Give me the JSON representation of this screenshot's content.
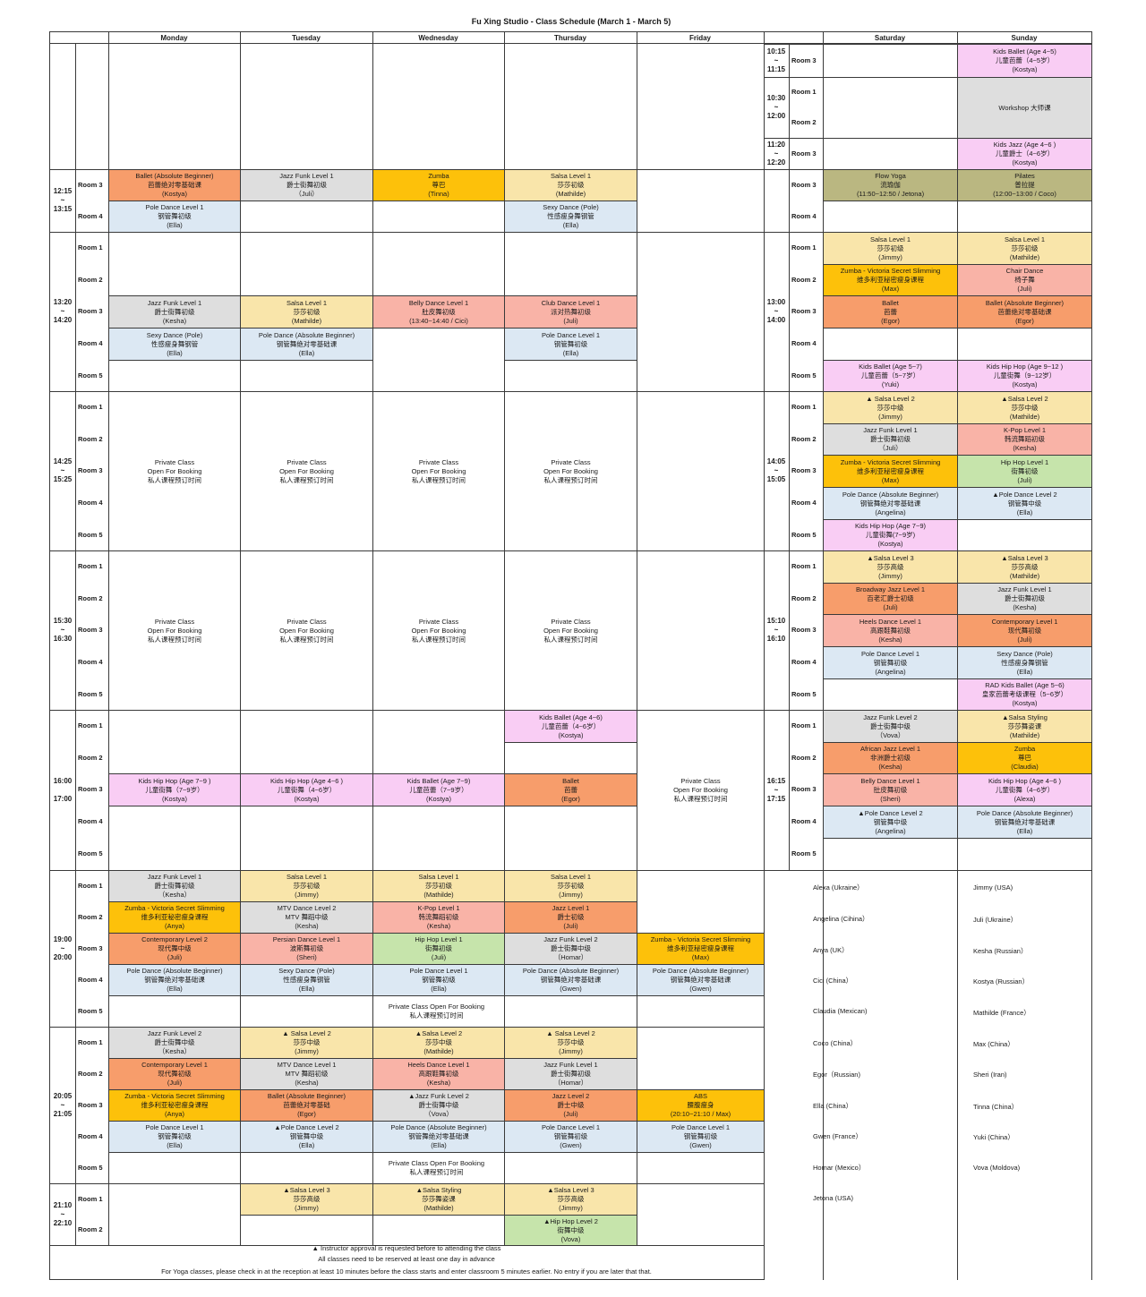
{
  "title": "Fu Xing Studio - Class Schedule (March 1 - March 5)",
  "days": [
    "Monday",
    "Tuesday",
    "Wednesday",
    "Thursday",
    "Friday",
    "Saturday",
    "Sunday"
  ],
  "colors": {
    "ballet": "#f79d6b",
    "jazz_funk": "#dedede",
    "zumba": "#fdc10a",
    "salsa": "#f9e5aa",
    "pole": "#dce8f3",
    "belly_heels_kpop": "#f9b3a7",
    "kids": "#f9cdf4",
    "hiphop": "#c6e4ab",
    "yoga": "#bab781"
  },
  "weekday_blocks": [
    {
      "time": [
        "12:15",
        "~",
        "13:15"
      ],
      "rooms": [
        "Room 3",
        "Room 4"
      ]
    },
    {
      "time": [
        "13:20",
        "~",
        "14:20"
      ],
      "rooms": [
        "Room 1",
        "Room 2",
        "Room 3",
        "Room 4",
        "Room 5"
      ]
    },
    {
      "time": [
        "14:25",
        "~",
        "15:25"
      ],
      "rooms": [
        "Room 1",
        "Room 2",
        "Room 3",
        "Room 4",
        "Room 5"
      ]
    },
    {
      "time": [
        "15:30",
        "~",
        "16:30"
      ],
      "rooms": [
        "Room 1",
        "Room 2",
        "Room 3",
        "Room 4",
        "Room 5"
      ]
    },
    {
      "time": [
        "16:00",
        "",
        "17:00"
      ],
      "rooms": [
        "Room 1",
        "Room 2",
        "Room 3",
        "Room 4",
        "Room 5"
      ]
    },
    {
      "time": [
        "19:00",
        "~",
        "20:00"
      ],
      "rooms": [
        "Room 1",
        "Room 2",
        "Room 3",
        "Room 4",
        "Room 5"
      ]
    },
    {
      "time": [
        "20:05",
        "~",
        "21:05"
      ],
      "rooms": [
        "Room 1",
        "Room 2",
        "Room 3",
        "Room 4",
        "Room 5"
      ]
    },
    {
      "time": [
        "21:10",
        "~",
        "22:10"
      ],
      "rooms": [
        "Room 1",
        "Room 2"
      ]
    }
  ],
  "weekend_blocks": [
    {
      "time": [
        "10:15",
        "~",
        "11:15"
      ],
      "rooms": [
        "Room 3"
      ]
    },
    {
      "time": [
        "10:30",
        "~",
        "12:00"
      ],
      "rooms": [
        "Room 1",
        "Room 2"
      ]
    },
    {
      "time": [
        "11:20",
        "~",
        "12:20"
      ],
      "rooms": [
        "Room 3"
      ]
    },
    {
      "time": [
        "",
        "",
        ""
      ],
      "rooms": [
        "Room 3",
        "Room 4"
      ]
    },
    {
      "time": [
        "13:00",
        "~",
        "14:00"
      ],
      "rooms": [
        "Room 1",
        "Room 2",
        "Room 3",
        "Room 4",
        "Room 5"
      ]
    },
    {
      "time": [
        "14:05",
        "~",
        "15:05"
      ],
      "rooms": [
        "Room 1",
        "Room 2",
        "Room 3",
        "Room 4",
        "Room 5"
      ]
    },
    {
      "time": [
        "15:10",
        "~",
        "16:10"
      ],
      "rooms": [
        "Room 1",
        "Room 2",
        "Room 3",
        "Room 4",
        "Room 5"
      ]
    },
    {
      "time": [
        "16:15",
        "~",
        "17:15"
      ],
      "rooms": [
        "Room 1",
        "Room 2",
        "Room 3",
        "Room 4",
        "Room 5"
      ]
    }
  ],
  "classes": [
    {
      "lines": [
        "Kids Ballet (Age 4~5)",
        "儿童芭蕾（4~5岁）",
        "(Kostya)"
      ],
      "color": "kids"
    },
    {
      "lines": [
        "Workshop 大师课"
      ],
      "color": "wk"
    },
    {
      "lines": [
        "Kids Jazz (Age 4~6 )",
        "儿童爵士（4~6岁）",
        "(Kostya)"
      ],
      "color": "kids"
    },
    {
      "lines": [
        "Ballet (Absolute Beginner)",
        "芭蕾绝对零基础课",
        "(Kostya)"
      ],
      "color": "ballet"
    },
    {
      "lines": [
        "Jazz Funk Level 1",
        "爵士街舞初级",
        "（Juli）"
      ],
      "color": "jazz"
    },
    {
      "lines": [
        "Zumba",
        "尊巴",
        "(Tinna)"
      ],
      "color": "zumba"
    },
    {
      "lines": [
        "Salsa Level 1",
        "莎莎初级",
        "(Mathilde)"
      ],
      "color": "salsa"
    },
    {
      "lines": [
        "Pole Dance Level 1",
        "钢管舞初级",
        "(Ella)"
      ],
      "color": "pole"
    },
    {
      "lines": [
        "Sexy Dance (Pole)",
        "性感瘦身舞钢管",
        "(Ella)"
      ],
      "color": "pole"
    },
    {
      "lines": [
        "Flow Yoga",
        "流瑜伽",
        "(11:50~12:50 / Jetona)"
      ],
      "color": "yoga"
    },
    {
      "lines": [
        "Pilates",
        "普拉提",
        "(12:00~13:00 / Coco)"
      ],
      "color": "yoga"
    },
    {
      "lines": [
        "Jazz Funk Level 1",
        "爵士街舞初级",
        "(Kesha)"
      ],
      "color": "jazz"
    },
    {
      "lines": [
        "Salsa Level 1",
        "莎莎初级",
        "(Mathilde)"
      ],
      "color": "salsa"
    },
    {
      "lines": [
        "Belly Dance Level 1",
        "肚皮舞初级",
        "(13:40~14:40 / Cici)"
      ],
      "color": "belly"
    },
    {
      "lines": [
        "Club Dance Level 1",
        "派对热舞初级",
        "(Juli)"
      ],
      "color": "belly"
    },
    {
      "lines": [
        "Sexy Dance (Pole)",
        "性感瘦身舞钢管",
        "(Ella)"
      ],
      "color": "pole"
    },
    {
      "lines": [
        "Pole Dance (Absolute Beginner)",
        "钢管舞绝对零基础课",
        "(Ella)"
      ],
      "color": "pole"
    },
    {
      "lines": [
        "Pole Dance Level 1",
        "钢管舞初级",
        "(Ella)"
      ],
      "color": "pole"
    },
    {
      "lines": [
        "Salsa Level 1",
        "莎莎初级",
        "(Jimmy)"
      ],
      "color": "salsa"
    },
    {
      "lines": [
        "Salsa Level 1",
        "莎莎初级",
        "(Mathilde)"
      ],
      "color": "salsa"
    },
    {
      "lines": [
        "Zumba - Victoria Secret Slimming",
        "维多利亚秘密瘦身课程",
        "(Max)"
      ],
      "color": "zumba"
    },
    {
      "lines": [
        "Chair Dance",
        "椅子舞",
        "(Juli)"
      ],
      "color": "belly"
    },
    {
      "lines": [
        "Ballet",
        "芭蕾",
        "(Egor)"
      ],
      "color": "ballet"
    },
    {
      "lines": [
        "Ballet (Absolute Beginner)",
        "芭蕾绝对零基础课",
        "(Egor)"
      ],
      "color": "ballet"
    },
    {
      "lines": [
        "Kids Ballet (Age 5~7)",
        "儿童芭蕾（5~7岁）",
        "(Yuki)"
      ],
      "color": "kids"
    },
    {
      "lines": [
        "Kids Hip Hop (Age 9~12 )",
        "儿童街舞（9~12岁）",
        "(Kostya)"
      ],
      "color": "kids"
    },
    {
      "lines": [
        "Private Class",
        "Open For Booking",
        "私人课程预订时间"
      ],
      "color": ""
    },
    {
      "lines": [
        "▲ Salsa Level 2",
        "莎莎中级",
        "(Jimmy)"
      ],
      "color": "salsa"
    },
    {
      "lines": [
        "▲Salsa Level 2",
        "莎莎中级",
        "(Mathilde)"
      ],
      "color": "salsa"
    },
    {
      "lines": [
        "Jazz Funk Level 1",
        "爵士街舞初级",
        "（Juli）"
      ],
      "color": "jazz"
    },
    {
      "lines": [
        "K-Pop Level 1",
        "韩流舞蹈初级",
        "(Kesha)"
      ],
      "color": "belly"
    },
    {
      "lines": [
        "Zumba - Victoria Secret Slimming",
        "维多利亚秘密瘦身课程",
        "(Max)"
      ],
      "color": "zumba"
    },
    {
      "lines": [
        "Hip Hop Level 1",
        "街舞初级",
        "(Juli)"
      ],
      "color": "hiphop"
    },
    {
      "lines": [
        "Pole Dance (Absolute Beginner)",
        "钢管舞绝对零基础课",
        "(Angelina)"
      ],
      "color": "pole"
    },
    {
      "lines": [
        "▲Pole Dance Level 2",
        "钢管舞中级",
        "(Ella)"
      ],
      "color": "pole"
    },
    {
      "lines": [
        "Kids Hip Hop (Age 7~9)",
        "儿童街舞(7~9岁)",
        "(Kostya)"
      ],
      "color": "kids"
    },
    {
      "lines": [
        "▲Salsa Level 3",
        "莎莎高级",
        "(Jimmy)"
      ],
      "color": "salsa"
    },
    {
      "lines": [
        "▲Salsa Level 3",
        "莎莎高级",
        "(Mathilde)"
      ],
      "color": "salsa"
    },
    {
      "lines": [
        "Broadway Jazz Level 1",
        "百老汇爵士初级",
        "(Juli)"
      ],
      "color": "ballet"
    },
    {
      "lines": [
        "Jazz Funk Level 1",
        "爵士街舞初级",
        "(Kesha)"
      ],
      "color": "jazz"
    },
    {
      "lines": [
        "Heels Dance Level 1",
        "高跟鞋舞初级",
        "(Kesha)"
      ],
      "color": "belly"
    },
    {
      "lines": [
        "Contemporary Level 1",
        "现代舞初级",
        "(Juli)"
      ],
      "color": "ballet"
    },
    {
      "lines": [
        "Pole Dance Level 1",
        "钢管舞初级",
        "(Angelina)"
      ],
      "color": "pole"
    },
    {
      "lines": [
        "Sexy Dance (Pole)",
        "性感瘦身舞钢管",
        "(Ella)"
      ],
      "color": "pole"
    },
    {
      "lines": [
        "RAD Kids Ballet (Age 5~6)",
        "皇家芭蕾考级课程（5~6岁）",
        "(Kostya)"
      ],
      "color": "kids"
    },
    {
      "lines": [
        "Kids Ballet (Age 4~6)",
        "儿童芭蕾（4~6岁）",
        "(Kostya)"
      ],
      "color": "kids"
    },
    {
      "lines": [
        "Kids Hip Hop (Age 7~9 )",
        "儿童街舞（7~9岁）",
        "(Kostya)"
      ],
      "color": "kids"
    },
    {
      "lines": [
        "Kids Hip Hop (Age 4~6 )",
        "儿童街舞（4~6岁）",
        "(Kostya)"
      ],
      "color": "kids"
    },
    {
      "lines": [
        "Kids Ballet (Age 7~9)",
        "儿童芭蕾（7~9岁）",
        "(Kostya)"
      ],
      "color": "kids"
    },
    {
      "lines": [
        "Ballet",
        "芭蕾",
        "(Egor)"
      ],
      "color": "ballet"
    },
    {
      "lines": [
        "Jazz Funk Level 2",
        "爵士街舞中级",
        "（Vova）"
      ],
      "color": "jazz"
    },
    {
      "lines": [
        "▲Salsa Styling",
        "莎莎舞姿课",
        "(Mathilde)"
      ],
      "color": "salsa"
    },
    {
      "lines": [
        "African Jazz Level 1",
        "非洲爵士初级",
        "(Kesha)"
      ],
      "color": "ballet"
    },
    {
      "lines": [
        "Zumba",
        "尊巴",
        "(Claudia)"
      ],
      "color": "zumba"
    },
    {
      "lines": [
        "Belly Dance Level 1",
        "肚皮舞初级",
        "(Sheri)"
      ],
      "color": "belly"
    },
    {
      "lines": [
        "Kids Hip Hop (Age 4~6 )",
        "儿童街舞（4~6岁）",
        "(Alexa)"
      ],
      "color": "kids"
    },
    {
      "lines": [
        "▲Pole Dance Level 2",
        "钢管舞中级",
        "(Angelina)"
      ],
      "color": "pole"
    },
    {
      "lines": [
        "Pole Dance (Absolute Beginner)",
        "钢管舞绝对零基础课",
        "(Ella)"
      ],
      "color": "pole"
    },
    {
      "lines": [
        "Jazz Funk Level 1",
        "爵士街舞初级",
        "（Kesha）"
      ],
      "color": "jazz"
    },
    {
      "lines": [
        "Salsa Level 1",
        "莎莎初级",
        "(Jimmy)"
      ],
      "color": "salsa"
    },
    {
      "lines": [
        "Salsa Level 1",
        "莎莎初级",
        "(Mathilde)"
      ],
      "color": "salsa"
    },
    {
      "lines": [
        "Salsa Level 1",
        "莎莎初级",
        "(Jimmy)"
      ],
      "color": "salsa"
    },
    {
      "lines": [
        "Zumba - Victoria Secret Slimming",
        "维多利亚秘密瘦身课程",
        "(Anya)"
      ],
      "color": "zumba"
    },
    {
      "lines": [
        "MTV Dance Level 2",
        "MTV 舞蹈中级",
        "(Kesha)"
      ],
      "color": "jazz"
    },
    {
      "lines": [
        "K-Pop Level 1",
        "韩流舞蹈初级",
        "(Kesha)"
      ],
      "color": "belly"
    },
    {
      "lines": [
        "Jazz Level 1",
        "爵士初级",
        "(Juli)"
      ],
      "color": "ballet"
    },
    {
      "lines": [
        "Contemporary Level 2",
        "现代舞中级",
        "(Juli)"
      ],
      "color": "ballet"
    },
    {
      "lines": [
        "Persian Dance Level 1",
        "波斯舞初级",
        "(Sheri)"
      ],
      "color": "belly"
    },
    {
      "lines": [
        "Hip Hop Level 1",
        "街舞初级",
        "(Juli)"
      ],
      "color": "hiphop"
    },
    {
      "lines": [
        "Jazz Funk Level 2",
        "爵士街舞中级",
        "（Homar）"
      ],
      "color": "jazz"
    },
    {
      "lines": [
        "Zumba - Victoria Secret Slimming",
        "维多利亚秘密瘦身课程",
        "(Max)"
      ],
      "color": "zumba"
    },
    {
      "lines": [
        "Pole Dance (Absolute Beginner)",
        "钢管舞绝对零基础课",
        "(Ella)"
      ],
      "color": "pole"
    },
    {
      "lines": [
        "Sexy Dance (Pole)",
        "性感瘦身舞钢管",
        "(Ella)"
      ],
      "color": "pole"
    },
    {
      "lines": [
        "Pole Dance Level 1",
        "钢管舞初级",
        "(Ella)"
      ],
      "color": "pole"
    },
    {
      "lines": [
        "Pole Dance (Absolute Beginner)",
        "钢管舞绝对零基础课",
        "(Gwen)"
      ],
      "color": "pole"
    },
    {
      "lines": [
        "Pole Dance (Absolute Beginner)",
        "钢管舞绝对零基础课",
        "(Gwen)"
      ],
      "color": "pole"
    },
    {
      "lines": [
        "Private Class Open For Booking",
        "私人课程预订时间"
      ],
      "color": ""
    },
    {
      "lines": [
        "Jazz Funk Level 2",
        "爵士街舞中级",
        "（Kesha）"
      ],
      "color": "jazz"
    },
    {
      "lines": [
        "▲ Salsa Level 2",
        "莎莎中级",
        "(Jimmy)"
      ],
      "color": "salsa"
    },
    {
      "lines": [
        "▲Salsa Level 2",
        "莎莎中级",
        "(Mathilde)"
      ],
      "color": "salsa"
    },
    {
      "lines": [
        "▲ Salsa Level 2",
        "莎莎中级",
        "(Jimmy)"
      ],
      "color": "salsa"
    },
    {
      "lines": [
        "Contemporary Level 1",
        "现代舞初级",
        "(Juli)"
      ],
      "color": "ballet"
    },
    {
      "lines": [
        "MTV Dance Level 1",
        "MTV 舞蹈初级",
        "(Kesha)"
      ],
      "color": "jazz"
    },
    {
      "lines": [
        "Heels Dance Level 1",
        "高跟鞋舞初级",
        "(Kesha)"
      ],
      "color": "belly"
    },
    {
      "lines": [
        "Jazz Funk Level 1",
        "爵士街舞初级",
        "（Homar）"
      ],
      "color": "jazz"
    },
    {
      "lines": [
        "Zumba - Victoria Secret Slimming",
        "维多利亚秘密瘦身课程",
        "(Anya)"
      ],
      "color": "zumba"
    },
    {
      "lines": [
        "Ballet (Absolute Beginner)",
        "芭蕾绝对零基础",
        "(Egor)"
      ],
      "color": "ballet"
    },
    {
      "lines": [
        "▲Jazz Funk Level 2",
        "爵士街舞中级",
        "（Vova）"
      ],
      "color": "jazz"
    },
    {
      "lines": [
        "Jazz Level 2",
        "爵士中级",
        "(Juli)"
      ],
      "color": "ballet"
    },
    {
      "lines": [
        "ABS",
        "腰腹瘦身",
        "(20:10~21:10 / Max)"
      ],
      "color": "zumba"
    },
    {
      "lines": [
        "Pole Dance Level 1",
        "钢管舞初级",
        "(Ella)"
      ],
      "color": "pole"
    },
    {
      "lines": [
        "▲Pole Dance Level 2",
        "钢管舞中级",
        "(Ella)"
      ],
      "color": "pole"
    },
    {
      "lines": [
        "Pole Dance (Absolute Beginner)",
        "钢管舞绝对零基础课",
        "(Ella)"
      ],
      "color": "pole"
    },
    {
      "lines": [
        "Pole Dance Level 1",
        "钢管舞初级",
        "(Gwen)"
      ],
      "color": "pole"
    },
    {
      "lines": [
        "Pole Dance Level 1",
        "钢管舞初级",
        "(Gwen)"
      ],
      "color": "pole"
    },
    {
      "lines": [
        "▲Salsa Level 3",
        "莎莎高级",
        "(Jimmy)"
      ],
      "color": "salsa"
    },
    {
      "lines": [
        "▲Salsa Styling",
        "莎莎舞姿课",
        "(Mathilde)"
      ],
      "color": "salsa"
    },
    {
      "lines": [
        "▲Salsa Level 3",
        "莎莎高级",
        "(Jimmy)"
      ],
      "color": "salsa"
    },
    {
      "lines": [
        "▲Hip Hop Level 2",
        "街舞中级",
        "(Vova)"
      ],
      "color": "hiphop"
    }
  ],
  "instructors_left": [
    "Alexa (Ukraine）",
    "Angelina (Cihina）",
    "Anya (UK）",
    "Cici (China）",
    "Claudia (Mexican)",
    "Coco (China）",
    "Egor（Russian)",
    "Ella (China）",
    "Gwen (France）",
    "Homar (Mexico）",
    "Jetona (USA)"
  ],
  "instructors_right": [
    "Jimmy (USA)",
    "Juli (Ukraine）",
    "Kesha (Russian）",
    "Kostya (Russian）",
    "Mathilde (France）",
    "Max (China）",
    "Sheri (Iran)",
    "Tinna (China）",
    "Yuki (China）",
    "Vova (Moldova)"
  ],
  "footnotes": [
    "▲ Instructor approval is requested before to attending the class",
    "All classes need to be reserved at least one day in advance",
    "For Yoga classes, please check in at the reception at least 10 minutes before the class starts and enter classroom 5 minutes earlier. No entry if you are later that that."
  ]
}
